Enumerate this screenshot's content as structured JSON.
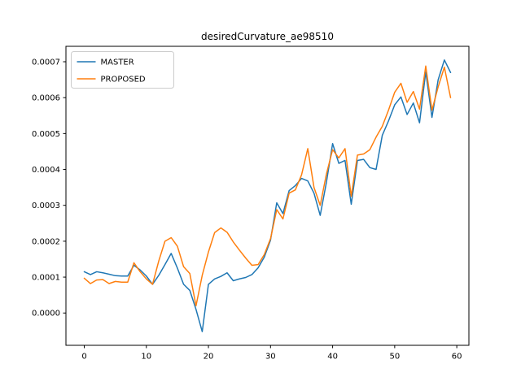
{
  "title": "desiredCurvature_ae98510",
  "legend": {
    "position": "upper left",
    "entries": [
      {
        "label": "MASTER",
        "color": "#1f77b4"
      },
      {
        "label": "PROPOSED",
        "color": "#ff7f0e"
      }
    ]
  },
  "axes": {
    "xtick_labels": [
      "0",
      "10",
      "20",
      "30",
      "40",
      "50",
      "60"
    ],
    "ytick_labels": [
      "0.0000",
      "0.0001",
      "0.0002",
      "0.0003",
      "0.0004",
      "0.0005",
      "0.0006",
      "0.0007"
    ]
  },
  "chart_data": {
    "type": "line",
    "title": "desiredCurvature_ae98510",
    "xlabel": "",
    "ylabel": "",
    "grid": false,
    "legend_position": "upper left",
    "xlim": [
      -2.95,
      61.95
    ],
    "ylim": [
      -9e-05,
      0.000743
    ],
    "xticks": [
      0,
      10,
      20,
      30,
      40,
      50,
      60
    ],
    "yticks": [
      0.0,
      0.0001,
      0.0002,
      0.0003,
      0.0004,
      0.0005,
      0.0006,
      0.0007
    ],
    "ytick_labels": [
      "0.0000",
      "0.0001",
      "0.0002",
      "0.0003",
      "0.0004",
      "0.0005",
      "0.0006",
      "0.0007"
    ],
    "x": [
      0,
      1,
      2,
      3,
      4,
      5,
      6,
      7,
      8,
      9,
      10,
      11,
      12,
      13,
      14,
      15,
      16,
      17,
      18,
      19,
      20,
      21,
      22,
      23,
      24,
      25,
      26,
      27,
      28,
      29,
      30,
      31,
      32,
      33,
      34,
      35,
      36,
      37,
      38,
      39,
      40,
      41,
      42,
      43,
      44,
      45,
      46,
      47,
      48,
      49,
      50,
      51,
      52,
      53,
      54,
      55,
      56,
      57,
      58,
      59
    ],
    "series": [
      {
        "name": "MASTER",
        "color": "#1f77b4",
        "values": [
          0.000115,
          0.000107,
          0.000115,
          0.000112,
          0.000108,
          0.000104,
          0.000103,
          0.000103,
          0.000133,
          0.00012,
          0.000103,
          8e-05,
          0.000105,
          0.000135,
          0.000166,
          0.000125,
          8e-05,
          6.3e-05,
          1e-05,
          -5.2e-05,
          8e-05,
          9.5e-05,
          0.000102,
          0.000112,
          9e-05,
          9.5e-05,
          9.9e-05,
          0.000107,
          0.000126,
          0.000156,
          0.000203,
          0.000307,
          0.000277,
          0.000341,
          0.000355,
          0.000375,
          0.000368,
          0.000334,
          0.000272,
          0.000364,
          0.000472,
          0.000417,
          0.000425,
          0.000303,
          0.000425,
          0.000428,
          0.000405,
          0.0004,
          0.000495,
          0.000535,
          0.00058,
          0.000602,
          0.000553,
          0.000585,
          0.00053,
          0.000672,
          0.000545,
          0.00065,
          0.000705,
          0.00067
        ]
      },
      {
        "name": "PROPOSED",
        "color": "#ff7f0e",
        "values": [
          9.7e-05,
          8.2e-05,
          9.2e-05,
          9.3e-05,
          8.2e-05,
          8.8e-05,
          8.6e-05,
          8.6e-05,
          0.00014,
          0.000115,
          9.5e-05,
          8e-05,
          0.000145,
          0.0002,
          0.00021,
          0.000186,
          0.000129,
          0.00011,
          2e-05,
          0.000105,
          0.00017,
          0.000224,
          0.000237,
          0.000225,
          0.000198,
          0.000175,
          0.000153,
          0.000133,
          0.000135,
          0.000163,
          0.000207,
          0.000288,
          0.000262,
          0.000334,
          0.000343,
          0.000385,
          0.000458,
          0.00035,
          0.0003,
          0.000387,
          0.000455,
          0.000432,
          0.000458,
          0.000325,
          0.00044,
          0.000443,
          0.000455,
          0.00049,
          0.00052,
          0.000565,
          0.000615,
          0.00064,
          0.000587,
          0.000617,
          0.000568,
          0.000688,
          0.000565,
          0.00063,
          0.000685,
          0.0006
        ]
      }
    ]
  }
}
